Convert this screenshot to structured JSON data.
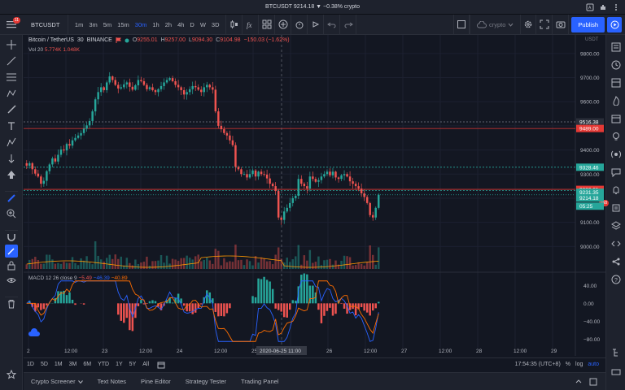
{
  "window_title": "BTCUSDT 9214.18 ▼ −0.38% crypto",
  "notifications": "11",
  "symbol": "BTCUSDT",
  "intervals": [
    "1m",
    "3m",
    "5m",
    "15m",
    "30m",
    "1h",
    "2h",
    "4h",
    "D",
    "W",
    "3D"
  ],
  "active_interval": "30m",
  "layout_name": "crypto",
  "publish_label": "Publish",
  "legend": {
    "title": "Bitcoin / TetherUS",
    "interval": "30",
    "exchange": "BINANCE",
    "open_label": "O",
    "open": "9255.01",
    "high_label": "H",
    "high": "9257.00",
    "low_label": "L",
    "low": "9094.30",
    "close_label": "C",
    "close": "9104.98",
    "change": "−150.03 (−1.62%)"
  },
  "volume_legend": {
    "label": "Vol 20",
    "v1": "5.774K",
    "v2": "1.048K"
  },
  "macd_legend": {
    "label": "MACD 12 26 close 9",
    "v1": "−5.49",
    "v2": "−46.39",
    "v3": "−40.89"
  },
  "axis_currency": "USDT",
  "price_ticks": [
    "9800.00",
    "9700.00",
    "9600.00",
    "9500.00",
    "9400.00",
    "9300.00",
    "9200.00",
    "9100.00",
    "9000.00"
  ],
  "price_labels": [
    {
      "value": "9516.38",
      "color": "#2a2e39"
    },
    {
      "value": "9489.00",
      "color": "#e53935"
    },
    {
      "value": "9328.46",
      "color": "#26a69a"
    },
    {
      "value": "9236.61",
      "color": "#e53935"
    },
    {
      "value": "9231.35",
      "color": "#26a69a"
    },
    {
      "value": "9214.18",
      "color": "#26a69a"
    },
    {
      "value": "05:25",
      "color": "#26a69a"
    }
  ],
  "right_badge": "158",
  "macd_ticks": [
    "40.00",
    "0.00",
    "−40.00",
    "−80.00"
  ],
  "time_ticks": [
    "2",
    "12:00",
    "23",
    "12:00",
    "24",
    "12:00",
    "25",
    "12:00",
    "26",
    "12:00",
    "27",
    "12:00",
    "28",
    "12:00",
    "29"
  ],
  "crosshair_time": "2020-06-25  11:00",
  "ranges": [
    "1D",
    "5D",
    "1M",
    "3M",
    "6M",
    "YTD",
    "1Y",
    "5Y",
    "All"
  ],
  "clock": "17:54:35 (UTC+8)",
  "scale_opts": [
    "%",
    "log",
    "auto"
  ],
  "bottom_tabs": [
    "Crypto Screener",
    "Text Notes",
    "Pine Editor",
    "Strategy Tester",
    "Trading Panel"
  ],
  "colors": {
    "up": "#26a69a",
    "down": "#ef5350",
    "bg": "#131722",
    "accent": "#2962ff",
    "macd": "#2962ff",
    "signal": "#ff6d00"
  },
  "chart_data": {
    "type": "candlestick",
    "title": "Bitcoin / TetherUS, 30, BINANCE",
    "ylim": [
      8900,
      9850
    ],
    "closes": [
      9335,
      9345,
      9320,
      9302,
      9290,
      9260,
      9272,
      9312,
      9340,
      9365,
      9352,
      9380,
      9402,
      9398,
      9425,
      9418,
      9440,
      9450,
      9460,
      9470,
      9488,
      9502,
      9520,
      9560,
      9610,
      9640,
      9660,
      9648,
      9680,
      9705,
      9690,
      9670,
      9655,
      9660,
      9672,
      9680,
      9662,
      9650,
      9668,
      9690,
      9685,
      9670,
      9652,
      9660,
      9648,
      9640,
      9652,
      9665,
      9680,
      9690,
      9698,
      9685,
      9670,
      9660,
      9648,
      9630,
      9640,
      9652,
      9665,
      9660,
      9650,
      9640,
      9660,
      9670,
      9660,
      9650,
      9560,
      9500,
      9486,
      9470,
      9460,
      9440,
      9420,
      9330,
      9320,
      9300,
      9300,
      9286,
      9300,
      9315,
      9290,
      9310,
      9300,
      9298,
      9282,
      9260,
      9250,
      9230,
      9120,
      9110,
      9145,
      9160,
      9180,
      9200,
      9210,
      9280,
      9260,
      9250,
      9240,
      9290,
      9280,
      9268,
      9275,
      9290,
      9300,
      9310,
      9295,
      9310,
      9286,
      9280,
      9295,
      9300,
      9290,
      9270,
      9260,
      9250,
      9240,
      9220,
      9205,
      9180,
      9130,
      9120,
      9160,
      9214
    ],
    "volume_mode": "relative",
    "macd": {
      "ylim": [
        -90,
        55
      ]
    }
  }
}
